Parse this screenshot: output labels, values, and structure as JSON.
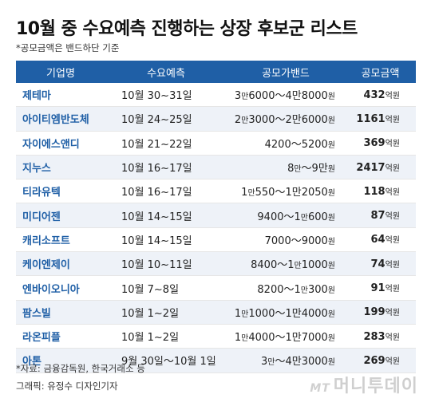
{
  "title": "10월 중 수요예측 진행하는 상장 후보군 리스트",
  "subtitle": "*공모금액은 밴드하단 기준",
  "source": "*자료: 금융감독원, 한국거래소 등",
  "graphic": "그래픽: 유정수 디자인기자",
  "logo": {
    "mt": "MT",
    "name": "머니투데이"
  },
  "chart_data": {
    "type": "table",
    "columns": [
      "기업명",
      "수요예측",
      "공모가밴드",
      "공모금액"
    ],
    "amount_unit": "억원",
    "rows": [
      {
        "company": "제테마",
        "period": "10월 30~31일",
        "band": [
          [
            "3",
            "만"
          ],
          [
            "6000～4",
            ""
          ],
          [
            "만",
            ""
          ],
          [
            "8000",
            "원"
          ]
        ],
        "amount": "432"
      },
      {
        "company": "아이티엠반도체",
        "period": "10월 24~25일",
        "band": [
          [
            "2",
            "만"
          ],
          [
            "3000～2",
            ""
          ],
          [
            "만",
            ""
          ],
          [
            "6000",
            "원"
          ]
        ],
        "amount": "1161"
      },
      {
        "company": "자이에스앤디",
        "period": "10월 21~22일",
        "band": [
          [
            "4200～5200",
            "원"
          ]
        ],
        "amount": "369"
      },
      {
        "company": "지누스",
        "period": "10월 16~17일",
        "band": [
          [
            "8",
            "만"
          ],
          [
            "～9",
            ""
          ],
          [
            "만",
            "원"
          ]
        ],
        "amount": "2417"
      },
      {
        "company": "티라유텍",
        "period": "10월 16~17일",
        "band": [
          [
            "1",
            "만"
          ],
          [
            "550～1",
            ""
          ],
          [
            "만",
            ""
          ],
          [
            "2050",
            "원"
          ]
        ],
        "amount": "118"
      },
      {
        "company": "미디어젠",
        "period": "10월 14~15일",
        "band": [
          [
            "9400～1",
            "만"
          ],
          [
            "600",
            "원"
          ]
        ],
        "amount": "87"
      },
      {
        "company": "캐리소프트",
        "period": "10월 14~15일",
        "band": [
          [
            "7000～9000",
            "원"
          ]
        ],
        "amount": "64"
      },
      {
        "company": "케이엔제이",
        "period": "10월 10~11일",
        "band": [
          [
            "8400～1",
            "만"
          ],
          [
            "1000",
            "원"
          ]
        ],
        "amount": "74"
      },
      {
        "company": "엔바이오니아",
        "period": "10월 7~8일",
        "band": [
          [
            "8200～1",
            "만"
          ],
          [
            "300",
            "원"
          ]
        ],
        "amount": "91"
      },
      {
        "company": "팜스빌",
        "period": "10월 1~2일",
        "band": [
          [
            "1",
            "만"
          ],
          [
            "1000～1",
            ""
          ],
          [
            "만",
            ""
          ],
          [
            "4000",
            "원"
          ]
        ],
        "amount": "199"
      },
      {
        "company": "라온피플",
        "period": "10월 1~2일",
        "band": [
          [
            "1",
            "만"
          ],
          [
            "4000～1",
            ""
          ],
          [
            "만",
            ""
          ],
          [
            "7000",
            "원"
          ]
        ],
        "amount": "283"
      },
      {
        "company": "아톤",
        "period": "9월 30일～10월 1일",
        "band": [
          [
            "3",
            "만"
          ],
          [
            "～4",
            ""
          ],
          [
            "만",
            ""
          ],
          [
            "3000",
            "원"
          ]
        ],
        "amount": "269"
      }
    ]
  }
}
